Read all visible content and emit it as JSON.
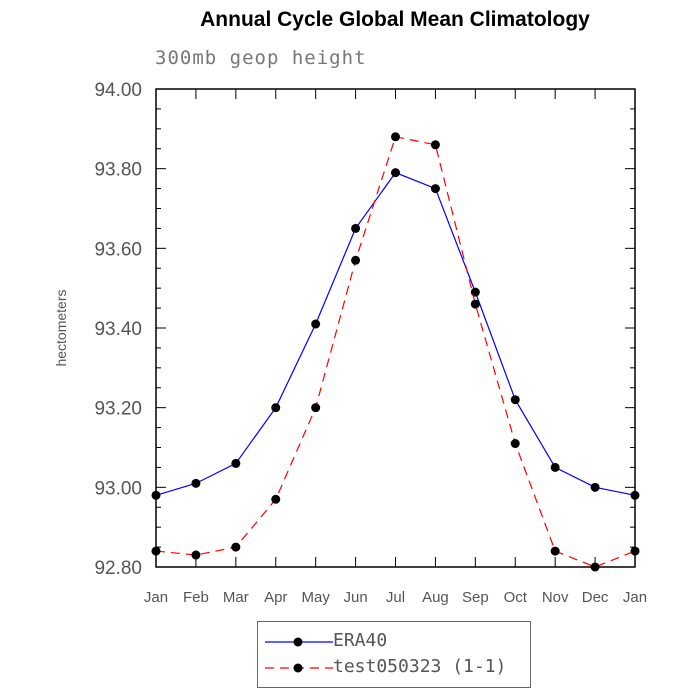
{
  "chart_data": {
    "type": "line",
    "title": "Annual Cycle Global Mean Climatology",
    "subtitle": "300mb geop height",
    "xlabel": "",
    "ylabel": "hectometers",
    "categories": [
      "Jan",
      "Feb",
      "Mar",
      "Apr",
      "May",
      "Jun",
      "Jul",
      "Aug",
      "Sep",
      "Oct",
      "Nov",
      "Dec",
      "Jan"
    ],
    "ylim": [
      92.8,
      94.0
    ],
    "yticks": [
      "92.80",
      "93.00",
      "93.20",
      "93.40",
      "93.60",
      "93.80",
      "94.00"
    ],
    "series": [
      {
        "name": "ERA40",
        "color": "#0000ff",
        "dash": "solid",
        "values": [
          92.98,
          93.01,
          93.06,
          93.2,
          93.41,
          93.65,
          93.79,
          93.75,
          93.49,
          93.22,
          93.05,
          93.0,
          92.98
        ]
      },
      {
        "name": "test050323 (1-1)",
        "color": "#ff0000",
        "dash": "dashed",
        "values": [
          92.84,
          92.83,
          92.85,
          92.97,
          93.2,
          93.57,
          93.88,
          93.86,
          93.46,
          93.11,
          92.84,
          92.8,
          92.84
        ]
      }
    ],
    "grid": false,
    "legend_position": "bottom"
  }
}
